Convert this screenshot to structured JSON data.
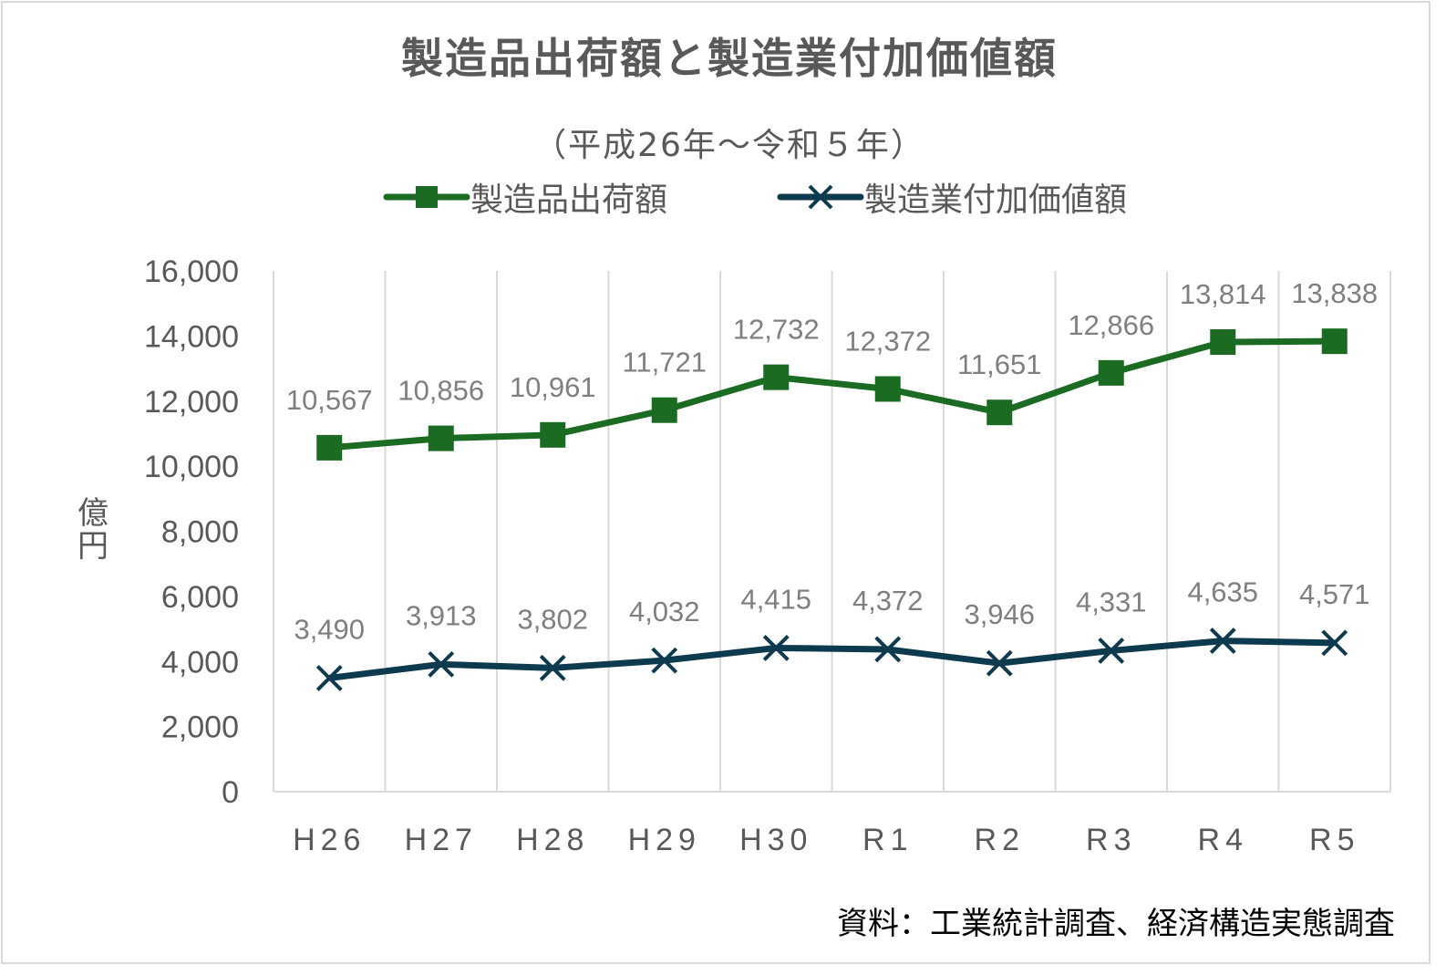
{
  "chart_data": {
    "type": "line",
    "title": "製造品出荷額と製造業付加価値額",
    "subtitle": "（平成26年～令和５年）",
    "ylabel": "億円",
    "xlabel": "",
    "categories": [
      "H26",
      "H27",
      "H28",
      "H29",
      "H30",
      "R1",
      "R2",
      "R3",
      "R4",
      "R5"
    ],
    "ylim": [
      0,
      16000
    ],
    "yticks": [
      0,
      2000,
      4000,
      6000,
      8000,
      10000,
      12000,
      14000,
      16000
    ],
    "ytick_labels": [
      "0",
      "2,000",
      "4,000",
      "6,000",
      "8,000",
      "10,000",
      "12,000",
      "14,000",
      "16,000"
    ],
    "grid": "vertical",
    "legend": "top",
    "series": [
      {
        "name": "製造品出荷額",
        "marker": "square",
        "color": "#1b6b23",
        "values": [
          10567,
          10856,
          10961,
          11721,
          12732,
          12372,
          11651,
          12866,
          13814,
          13838
        ],
        "labels": [
          "10,567",
          "10,856",
          "10,961",
          "11,721",
          "12,732",
          "12,372",
          "11,651",
          "12,866",
          "13,814",
          "13,838"
        ]
      },
      {
        "name": "製造業付加価値額",
        "marker": "x",
        "color": "#0d3a4e",
        "values": [
          3490,
          3913,
          3802,
          4032,
          4415,
          4372,
          3946,
          4331,
          4635,
          4571
        ],
        "labels": [
          "3,490",
          "3,913",
          "3,802",
          "4,032",
          "4,415",
          "4,372",
          "3,946",
          "4,331",
          "4,635",
          "4,571"
        ]
      }
    ],
    "source": "資料：工業統計調査、経済構造実態調査"
  }
}
